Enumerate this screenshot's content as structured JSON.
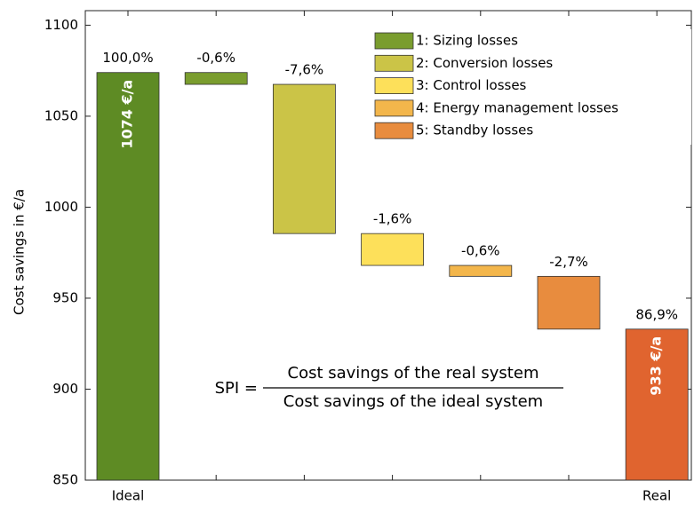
{
  "chart_data": {
    "type": "waterfall",
    "ylabel": "Cost savings in €/a",
    "categories": [
      "Ideal",
      null,
      null,
      null,
      null,
      null,
      "Real"
    ],
    "values": [
      1074,
      -6.5,
      -82,
      -17.5,
      -6,
      -29,
      933
    ],
    "value_labels": [
      "1074 €/a",
      null,
      null,
      null,
      null,
      null,
      "933 €/a"
    ],
    "percents": [
      100.0,
      -0.6,
      -7.6,
      -1.6,
      -0.6,
      -2.7,
      86.9
    ],
    "percent_labels": [
      "100,0%",
      "-0,6%",
      "-7,6%",
      "-1,6%",
      "-0,6%",
      "-2,7%",
      "86,9%"
    ],
    "colors": [
      "#5e8b24",
      "#7a9d2e",
      "#cbc447",
      "#fde05a",
      "#f3b64b",
      "#e88c3e",
      "#e0642f"
    ],
    "legend": [
      "1: Sizing losses",
      "2: Conversion losses",
      "3: Control losses",
      "4: Energy management losses",
      "5: Standby losses"
    ],
    "ylim": [
      850,
      1108
    ],
    "yticks": [
      850,
      900,
      950,
      1000,
      1050,
      1100
    ],
    "annotation": {
      "lhs": "SPI =",
      "numerator": "Cost savings of the real system",
      "denominator": "Cost savings of the ideal system"
    }
  }
}
